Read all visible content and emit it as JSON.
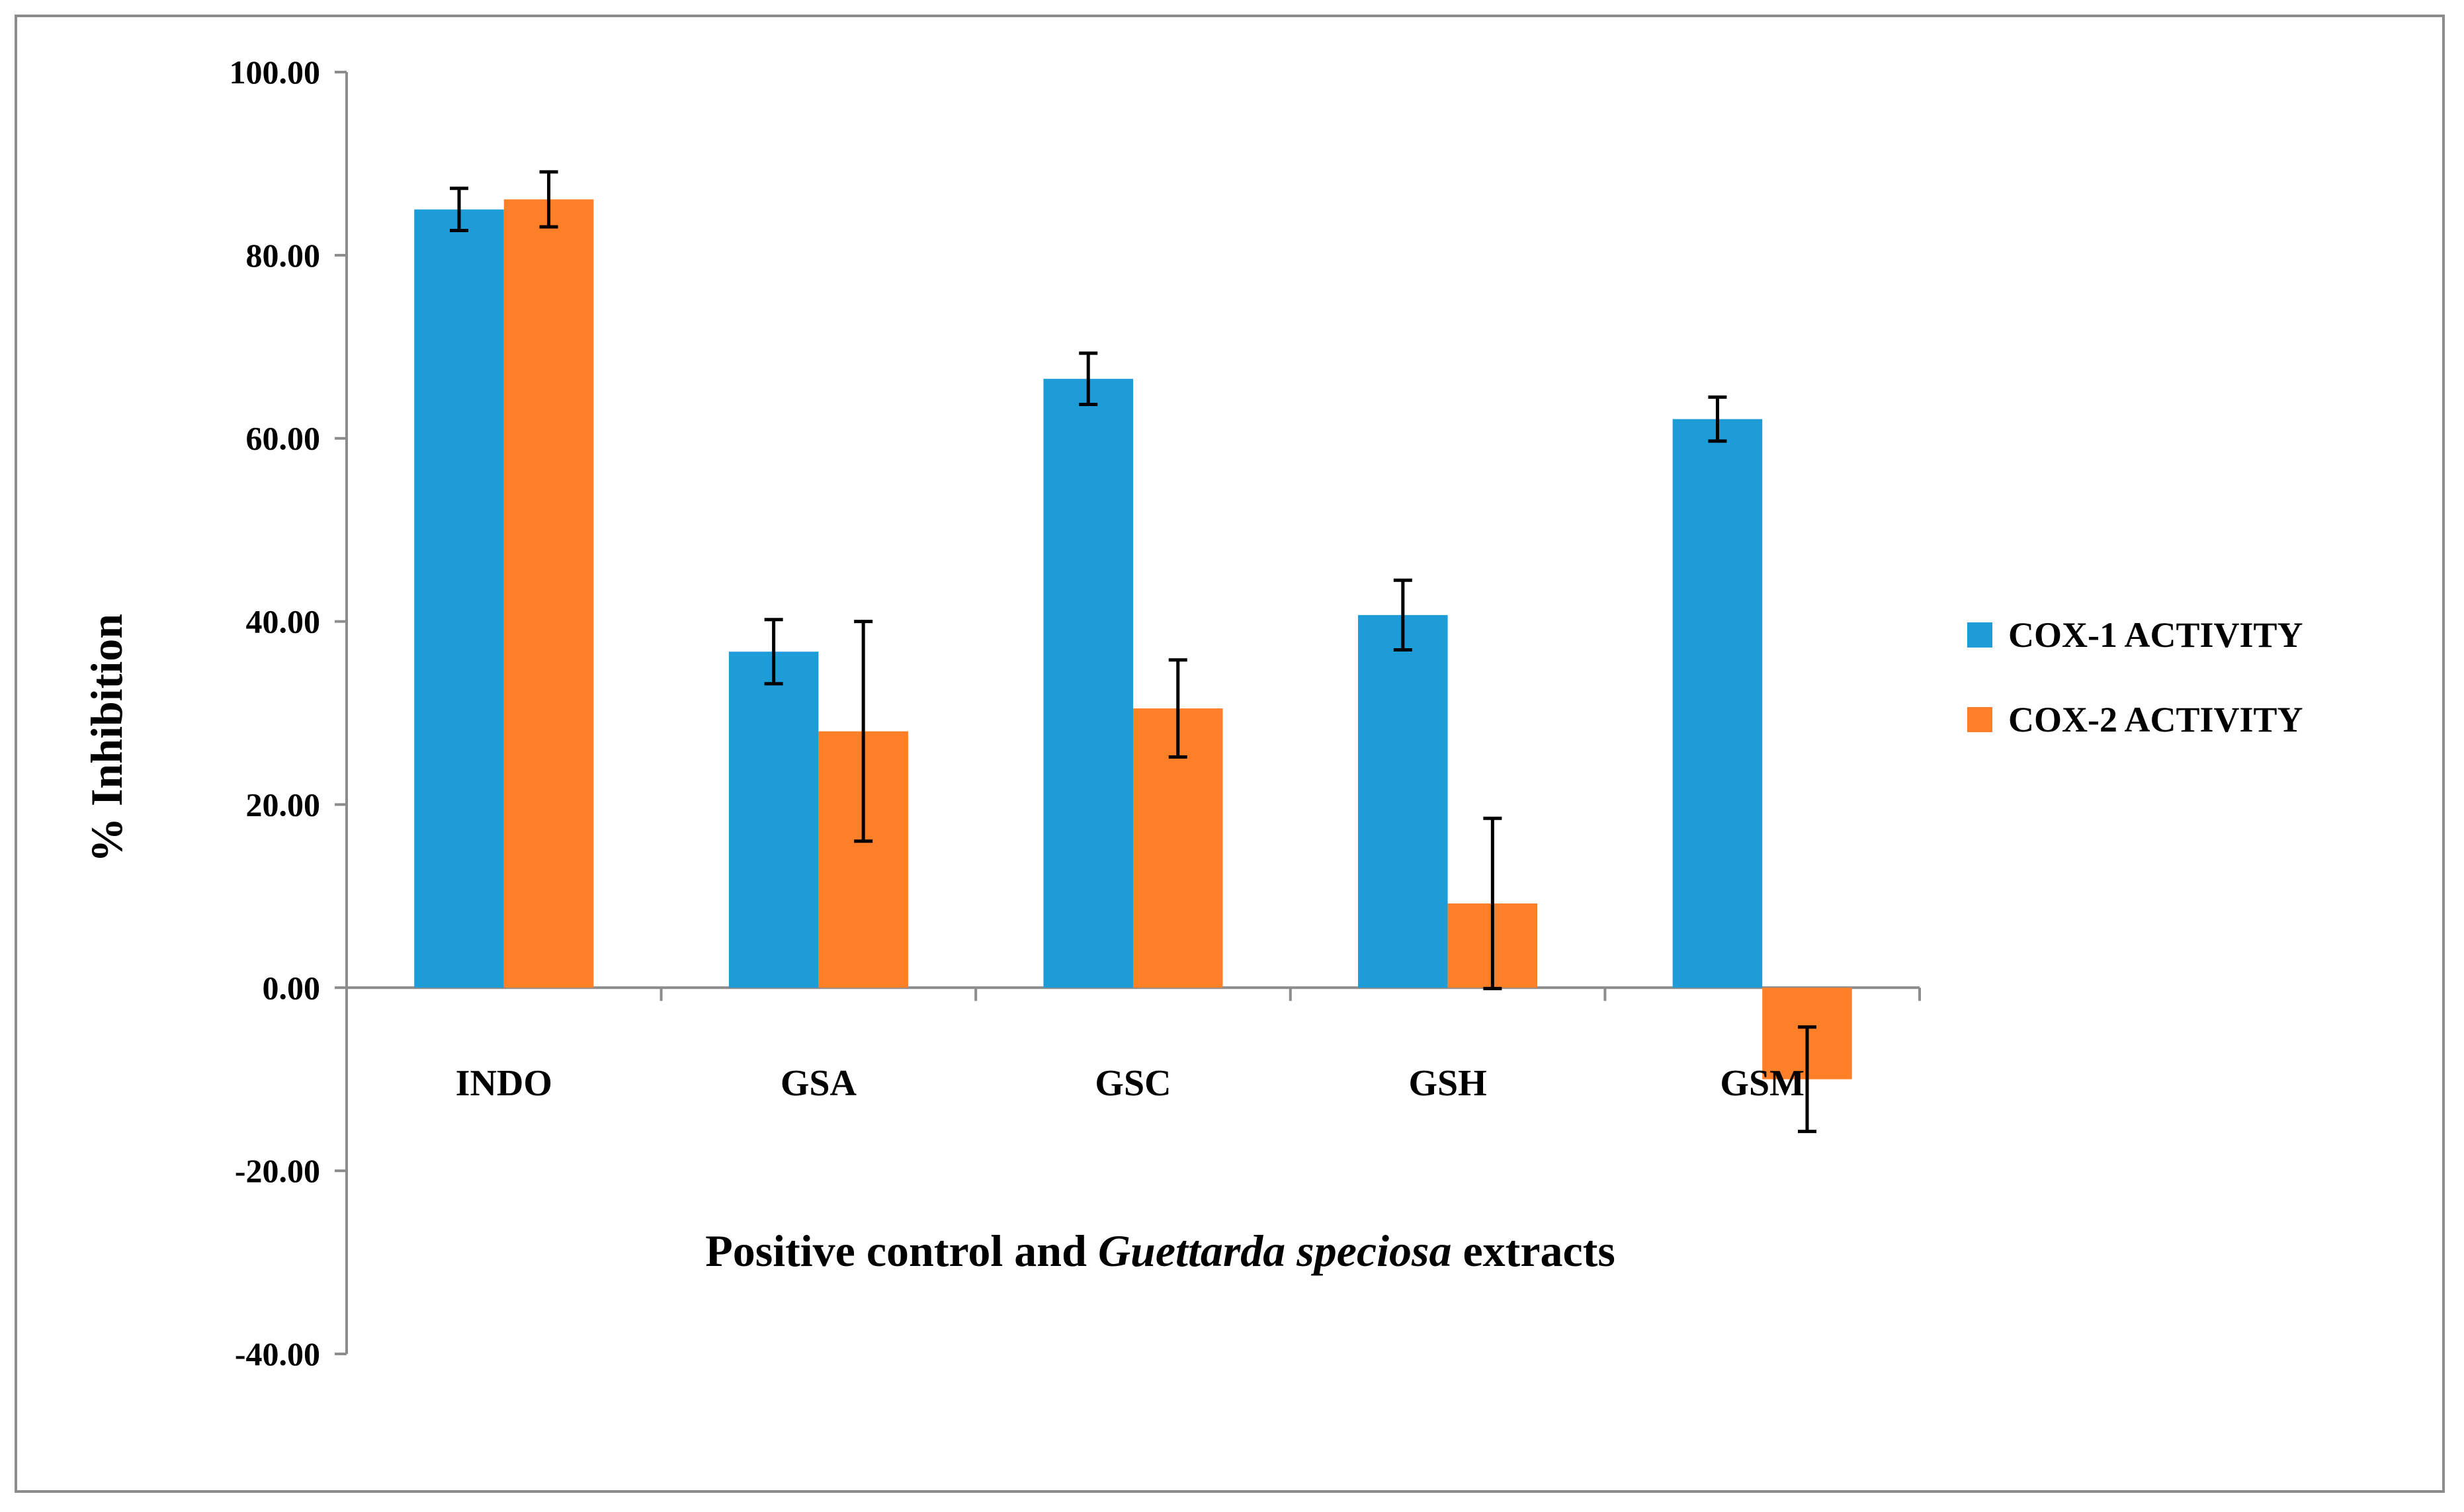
{
  "chart_data": {
    "type": "bar",
    "title": "",
    "xlabel": {
      "prefix": "Positive control and ",
      "italic": "Guettarda speciosa",
      "suffix": " extracts"
    },
    "ylabel": "% Inhibition",
    "ylim": [
      -40,
      100
    ],
    "y_ticks": [
      100,
      80,
      60,
      40,
      20,
      0,
      -20,
      -40
    ],
    "y_tick_labels": [
      "100.00",
      "80.00",
      "60.00",
      "40.00",
      "20.00",
      "0.00",
      "-20.00",
      "-40.00"
    ],
    "categories": [
      "INDO",
      "GSA",
      "GSC",
      "GSH",
      "GSM"
    ],
    "series": [
      {
        "name": "COX-1 ACTIVITY",
        "color": "#1e9cd8",
        "values": [
          85.0,
          36.7,
          66.5,
          40.7,
          62.1
        ],
        "errors": [
          2.3,
          3.5,
          2.8,
          3.8,
          2.4
        ]
      },
      {
        "name": "COX-2 ACTIVITY",
        "color": "#fd7f27",
        "values": [
          86.1,
          28.0,
          30.5,
          9.2,
          -10.0
        ],
        "errors": [
          3.0,
          12.0,
          5.3,
          9.3,
          5.7
        ]
      }
    ],
    "legend_position": "right"
  }
}
